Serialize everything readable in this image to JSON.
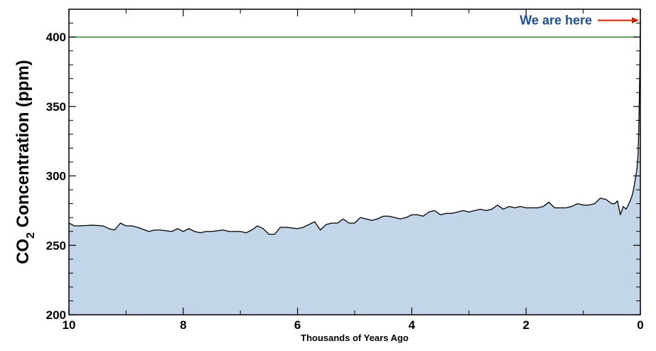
{
  "chart_data": {
    "type": "area",
    "title": "",
    "xlabel": "Thousands of Years Ago",
    "ylabel_main": "CO",
    "ylabel_sub": "2",
    "ylabel_rest": " Concentration (ppm)",
    "xlim": [
      10,
      0
    ],
    "ylim": [
      200,
      420
    ],
    "x_ticks": [
      10,
      8,
      6,
      4,
      2,
      0
    ],
    "y_ticks": [
      200,
      250,
      300,
      350,
      400
    ],
    "reference_line": {
      "y": 400,
      "color": "#2e8b2e"
    },
    "annotation": {
      "text": "We are here",
      "x": 0,
      "y": 412,
      "color": "#1f4e8c",
      "arrow_color": "#cc2200"
    },
    "fill_color": "#c3d5e8",
    "line_color": "#000000",
    "grid": false,
    "series": [
      {
        "x": [
          10.0,
          9.9,
          9.8,
          9.6,
          9.4,
          9.3,
          9.2,
          9.1,
          9.0,
          8.9,
          8.8,
          8.6,
          8.5,
          8.4,
          8.2,
          8.1,
          8.0,
          7.9,
          7.8,
          7.7,
          7.6,
          7.5,
          7.3,
          7.2,
          7.1,
          7.0,
          6.9,
          6.8,
          6.7,
          6.6,
          6.5,
          6.4,
          6.3,
          6.2,
          6.0,
          5.9,
          5.8,
          5.75,
          5.7,
          5.6,
          5.5,
          5.4,
          5.3,
          5.2,
          5.1,
          5.0,
          4.9,
          4.8,
          4.7,
          4.6,
          4.5,
          4.4,
          4.3,
          4.2,
          4.1,
          4.0,
          3.9,
          3.8,
          3.7,
          3.6,
          3.5,
          3.4,
          3.3,
          3.2,
          3.1,
          3.0,
          2.9,
          2.8,
          2.7,
          2.6,
          2.5,
          2.4,
          2.3,
          2.2,
          2.1,
          2.0,
          1.9,
          1.8,
          1.7,
          1.6,
          1.5,
          1.4,
          1.3,
          1.2,
          1.1,
          1.0,
          0.9,
          0.8,
          0.7,
          0.6,
          0.5,
          0.45,
          0.4,
          0.35,
          0.3,
          0.25,
          0.2,
          0.15,
          0.12,
          0.1,
          0.08,
          0.06,
          0.04,
          0.03,
          0.02,
          0.01,
          0.0
        ],
        "y": [
          266,
          264,
          264,
          264.5,
          264,
          262,
          261,
          266,
          264,
          264,
          263,
          260,
          261,
          261,
          260,
          262,
          260,
          262,
          260,
          259,
          260,
          260,
          261,
          260,
          260,
          260,
          259,
          261,
          264,
          262,
          258,
          258,
          263,
          263,
          262,
          263,
          265,
          266,
          267,
          261,
          265,
          266,
          266,
          269,
          266,
          266,
          270,
          269,
          268,
          269,
          271,
          271,
          270,
          269,
          270,
          272,
          272,
          271,
          274,
          275,
          272,
          273,
          273,
          274,
          275,
          274,
          275,
          276,
          275,
          276,
          279,
          276,
          278,
          277,
          278,
          277,
          277,
          277,
          278,
          281,
          277,
          277,
          277,
          278,
          280,
          279,
          279,
          280,
          284,
          283,
          280,
          280,
          282,
          272,
          278,
          276,
          280,
          285,
          290,
          295,
          300,
          305,
          315,
          330,
          350,
          375,
          412
        ]
      }
    ]
  }
}
